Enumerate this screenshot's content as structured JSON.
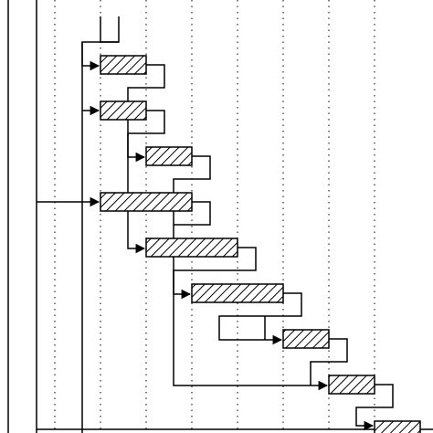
{
  "diagram": {
    "type": "gantt-dependency-chart",
    "line_color": "#000000",
    "bar_fill": "hatched-diagonal",
    "background": "#ffffff",
    "grid": "dotted-vertical",
    "column_count": 8,
    "tasks": [
      {
        "id": "t1",
        "start": 1.0,
        "duration": 1.0
      },
      {
        "id": "t2",
        "start": 1.0,
        "duration": 1.0
      },
      {
        "id": "t3",
        "start": 2.0,
        "duration": 1.0
      },
      {
        "id": "t4",
        "start": 1.0,
        "duration": 2.0
      },
      {
        "id": "t5",
        "start": 2.0,
        "duration": 2.0
      },
      {
        "id": "t6",
        "start": 3.0,
        "duration": 2.0
      },
      {
        "id": "t7",
        "start": 5.0,
        "duration": 1.0
      },
      {
        "id": "t8",
        "start": 6.0,
        "duration": 1.0
      },
      {
        "id": "t9",
        "start": 7.0,
        "duration": 1.0
      }
    ]
  }
}
